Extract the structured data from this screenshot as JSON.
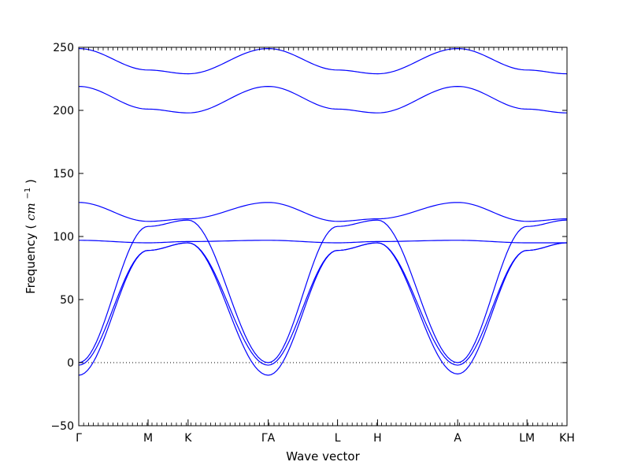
{
  "chart_data": {
    "type": "line",
    "title": "",
    "xlabel": "Wave vector",
    "ylabel_text": "Frequency",
    "ylabel_unit_base": "cm",
    "ylabel_unit_exp": "−1",
    "ylim": [
      -50,
      250
    ],
    "yticks": [
      -50,
      0,
      50,
      100,
      150,
      200,
      250
    ],
    "grid": false,
    "legend": "none",
    "zero_line": true,
    "line_color": "#0000ff",
    "high_symmetry_points": [
      {
        "label": "Γ",
        "x": 0.0
      },
      {
        "label": "M",
        "x": 0.577
      },
      {
        "label": "K",
        "x": 0.91
      },
      {
        "label": "ΓA",
        "x": 1.577
      },
      {
        "label": "L",
        "x": 2.154
      },
      {
        "label": "H",
        "x": 2.487
      },
      {
        "label": "A",
        "x": 3.154
      },
      {
        "label": "LM",
        "x": 3.731
      },
      {
        "label": "KH",
        "x": 4.064
      }
    ],
    "xlim": [
      0.0,
      4.064
    ],
    "band_samples": {
      "x": [
        0.0,
        0.577,
        0.91,
        1.577,
        1.577,
        2.154,
        2.487,
        3.154,
        3.731,
        3.731,
        4.064
      ],
      "series": [
        {
          "values": [
            -10,
            89,
            95,
            -10,
            -10,
            89,
            95,
            -9,
            89,
            89,
            95
          ]
        },
        {
          "values": [
            -2,
            89,
            95,
            -2,
            -2,
            89,
            95,
            -2,
            89,
            89,
            95
          ]
        },
        {
          "values": [
            0,
            108,
            113,
            0,
            0,
            108,
            113,
            0,
            108,
            108,
            113
          ]
        },
        {
          "values": [
            97,
            95,
            96,
            97,
            97,
            95,
            96,
            97,
            95,
            95,
            95
          ]
        },
        {
          "values": [
            127,
            112,
            114,
            127,
            127,
            112,
            114,
            127,
            112,
            112,
            114
          ]
        },
        {
          "values": [
            219,
            201,
            198,
            219,
            219,
            201,
            198,
            219,
            201,
            201,
            198
          ]
        },
        {
          "values": [
            249,
            232,
            229,
            249,
            249,
            232,
            229,
            249,
            232,
            232,
            229
          ]
        }
      ]
    }
  }
}
